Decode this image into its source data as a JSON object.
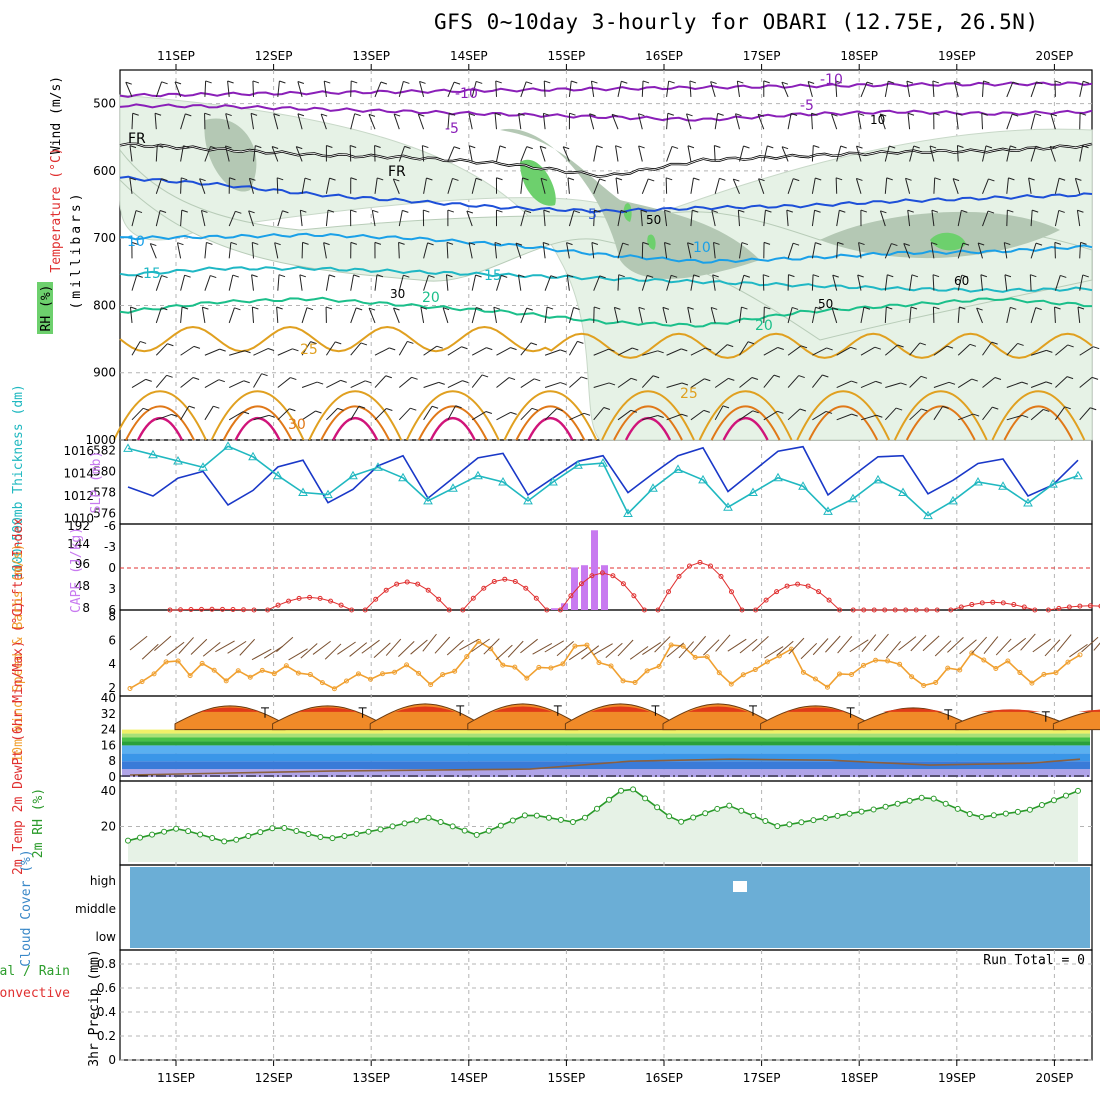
{
  "title": "GFS 0~10day 3-hourly for OBARI (12.75E, 26.5N)",
  "date_labels": [
    "11SEP",
    "12SEP",
    "13SEP",
    "14SEP",
    "15SEP",
    "16SEP",
    "17SEP",
    "18SEP",
    "19SEP",
    "20SEP"
  ],
  "colors": {
    "t_minus10": "#8a1fb8",
    "t_minus5": "#8a1fb8",
    "t_fr": "#000000",
    "t_5": "#1d4fd8",
    "t_10": "#1aa0e8",
    "t_15": "#1fb7c4",
    "t_20": "#1bbf8a",
    "t_25": "#e0a020",
    "t_30": "#e07818",
    "t_35": "#d0147a",
    "rh_light": "#e6f2e6",
    "rh_mid": "#b4c8b4",
    "rh_dark": "#8fa08f",
    "rh_high": "#6dd06d",
    "slp": "#1a38c8",
    "thick": "#20b8c0",
    "li": "#e03030",
    "cape": "#c87af0",
    "wind_speed": "#f0a030",
    "barb": "#7a5030",
    "rh2m": "#2a9a2a",
    "cloud": "#6baed6",
    "precip_label": "#2e9e2e"
  },
  "chart_data": [
    {
      "panel": "upper-air",
      "type": "contour",
      "ylabel": "(millibars)",
      "side_labels": [
        "Wind (m/s)",
        "Temperature (°C)",
        "RH (%)"
      ],
      "y_ticks": [
        500,
        600,
        700,
        800,
        900,
        1000
      ],
      "ylim": [
        1000,
        450
      ],
      "contour_labels": [
        "-10",
        "-5",
        "FR",
        "5",
        "10",
        "15",
        "20",
        "25",
        "30"
      ],
      "rh_labels": [
        "10",
        "30",
        "50",
        "50",
        "60"
      ],
      "isotherms": [
        {
          "value": "-10",
          "p": [
            488,
            486,
            484,
            482,
            480,
            478,
            476,
            474,
            472,
            471,
            470
          ]
        },
        {
          "value": "-5",
          "p": [
            503,
            504,
            508,
            512,
            516,
            520,
            524,
            516,
            512,
            515,
            512
          ]
        },
        {
          "value": "FR",
          "p": [
            560,
            568,
            576,
            580,
            590,
            608,
            584,
            578,
            572,
            570,
            562
          ]
        },
        {
          "value": "5",
          "p": [
            610,
            620,
            635,
            645,
            655,
            660,
            655,
            652,
            645,
            640,
            635
          ]
        },
        {
          "value": "10",
          "p": [
            700,
            698,
            695,
            700,
            710,
            725,
            735,
            730,
            722,
            720,
            712
          ]
        },
        {
          "value": "15",
          "p": [
            755,
            745,
            745,
            750,
            755,
            760,
            765,
            770,
            775,
            778,
            775
          ]
        },
        {
          "value": "20",
          "p": [
            810,
            795,
            790,
            800,
            810,
            825,
            830,
            810,
            800,
            790,
            800
          ]
        }
      ],
      "grid": true
    },
    {
      "panel": "thickness-slp",
      "type": "line",
      "ylabel_left": "1000~500mb Thickness (dm)",
      "ylabel_right": "SLP (mb)",
      "left_ticks": [
        576,
        578,
        580,
        582
      ],
      "right_ticks": [
        1010,
        1012,
        1014,
        1016
      ],
      "series": [
        {
          "name": "SLP (mb)",
          "x_days": [
            0,
            0.25,
            0.5,
            0.75,
            1,
            1.25,
            1.5,
            1.75,
            2,
            2.25,
            2.5,
            2.75,
            3,
            3.25,
            3.5,
            3.75,
            4,
            4.25,
            4.5,
            4.75,
            5,
            5.25,
            5.5,
            5.75,
            6,
            6.25,
            6.5,
            6.75,
            7,
            7.25,
            7.5,
            7.75,
            8,
            8.25,
            8.5,
            8.75,
            9,
            9.25,
            9.5
          ],
          "values": [
            1012.8,
            1012.0,
            1013.6,
            1014.2,
            1011.2,
            1012.5,
            1014.6,
            1015.2,
            1011.4,
            1012.6,
            1014.7,
            1015.6,
            1011.8,
            1013.6,
            1015.4,
            1015.8,
            1012.1,
            1013.6,
            1015.1,
            1015.6,
            1012.3,
            1014.0,
            1015.6,
            1016.3,
            1012.4,
            1014.2,
            1016.0,
            1016.4,
            1012.1,
            1013.8,
            1015.5,
            1015.6,
            1012.2,
            1013.4,
            1014.9,
            1015.3,
            1012.0,
            1013.0,
            1015.2
          ]
        },
        {
          "name": "Thickness (dm)",
          "x_days": [
            0,
            0.25,
            0.5,
            0.75,
            1,
            1.25,
            1.5,
            1.75,
            2,
            2.25,
            2.5,
            2.75,
            3,
            3.25,
            3.5,
            3.75,
            4,
            4.25,
            4.5,
            4.75,
            5,
            5.25,
            5.5,
            5.75,
            6,
            6.25,
            6.5,
            6.75,
            7,
            7.25,
            7.5,
            7.75,
            8,
            8.25,
            8.5,
            8.75,
            9,
            9.25,
            9.5
          ],
          "values": [
            582.2,
            581.6,
            581.0,
            580.4,
            582.4,
            581.4,
            579.6,
            578.0,
            577.8,
            579.6,
            580.4,
            579.4,
            577.2,
            578.4,
            579.6,
            579.0,
            577.2,
            579.0,
            580.6,
            580.8,
            576.0,
            578.4,
            580.2,
            579.2,
            576.6,
            578.0,
            579.4,
            578.6,
            576.2,
            577.4,
            579.2,
            578.0,
            575.8,
            577.2,
            579.0,
            578.6,
            577.0,
            578.8,
            579.6
          ]
        }
      ]
    },
    {
      "panel": "lifted-cape",
      "type": "bar+line",
      "ylabel_left": "Lifted Index",
      "ylabel_right": "CAPE (J/kg)",
      "left_ticks": [
        "-6",
        "-3",
        "0",
        "3",
        "6"
      ],
      "right_ticks": [
        "192",
        "144",
        "96",
        "48",
        "8"
      ],
      "series": [
        {
          "name": "Lifted Index",
          "x_days": [
            0.5,
            1.5,
            2.5,
            3.5,
            4.5,
            5.5,
            6.5,
            7.5,
            8.5,
            9.5
          ],
          "values": [
            5.9,
            4.2,
            2.0,
            1.6,
            0.7,
            -0.8,
            2.3,
            6.5,
            4.9,
            5.4
          ]
        },
        {
          "name": "CAPE",
          "type": "bar",
          "x_days": [
            4.1,
            4.2,
            4.3,
            4.4,
            4.5,
            4.6
          ],
          "values": [
            4,
            15,
            95,
            100,
            178,
            100
          ]
        }
      ]
    },
    {
      "panel": "wind10m",
      "type": "line",
      "ylabel": "10m Wind Speed & Barbs (m/s)",
      "y_ticks": [
        2,
        4,
        6,
        8
      ],
      "series": [
        {
          "name": "Wind Speed",
          "x_days": [
            0,
            0.5,
            1,
            1.5,
            2,
            2.5,
            3,
            3.5,
            4,
            4.5,
            5,
            5.5,
            6,
            6.5,
            7,
            7.5,
            8,
            8.5,
            9,
            9.5
          ],
          "values": [
            2.5,
            3.8,
            2.6,
            3.6,
            2.4,
            3.8,
            2.6,
            5.2,
            2.5,
            5.5,
            2.8,
            5.6,
            2.7,
            5.4,
            2.6,
            4.8,
            2.7,
            5.0,
            3.0,
            4.8
          ]
        }
      ]
    },
    {
      "panel": "temp2m",
      "type": "area",
      "ylabel": "2m Temp 2m DewPt (6hr Min/Max) (°C)",
      "y_ticks": [
        0,
        8,
        16,
        24,
        32,
        40
      ],
      "series": [
        {
          "name": "2m Temp",
          "x_days": [
            0,
            0.5,
            1,
            1.5,
            2,
            2.5,
            3,
            3.5,
            4,
            4.5,
            5,
            5.5,
            6,
            6.5,
            7,
            7.5,
            8,
            8.5,
            9,
            9.5
          ],
          "values": [
            36,
            27,
            36,
            27,
            37,
            27,
            37,
            27,
            37,
            27,
            37,
            27,
            36,
            26,
            35,
            26,
            34,
            26,
            34,
            25
          ]
        },
        {
          "name": "2m DewPt",
          "x_days": [
            0,
            1,
            2,
            3,
            4,
            5,
            6,
            7,
            8,
            9,
            9.5
          ],
          "values": [
            1,
            2,
            3,
            3.5,
            4,
            8,
            9,
            8.5,
            6,
            7,
            9
          ]
        }
      ]
    },
    {
      "panel": "rh2m",
      "type": "line",
      "ylabel": "2m RH (%)",
      "y_ticks": [
        20,
        40
      ],
      "series": [
        {
          "name": "2m RH",
          "x_days": [
            0,
            0.5,
            1,
            1.5,
            2,
            2.5,
            3,
            3.5,
            4,
            4.5,
            5,
            5.5,
            6,
            6.5,
            7,
            7.5,
            8,
            8.5,
            9,
            9.5
          ],
          "values": [
            12,
            19,
            11,
            20,
            13,
            18,
            25,
            15,
            27,
            22,
            43,
            22,
            32,
            20,
            25,
            30,
            37,
            25,
            29,
            40
          ]
        }
      ]
    },
    {
      "panel": "cloud",
      "type": "heatmap",
      "ylabel": "Cloud Cover (%)",
      "levels": [
        "high",
        "middle",
        "low"
      ]
    },
    {
      "panel": "precip",
      "type": "bar",
      "ylabel": "3hr Precip (mm)",
      "side_labels": [
        "Total / Rain",
        "Convective"
      ],
      "y_ticks": [
        "0",
        "0.2",
        "0.4",
        "0.6",
        "0.8"
      ],
      "run_total": "Run Total = 0",
      "values": []
    }
  ]
}
